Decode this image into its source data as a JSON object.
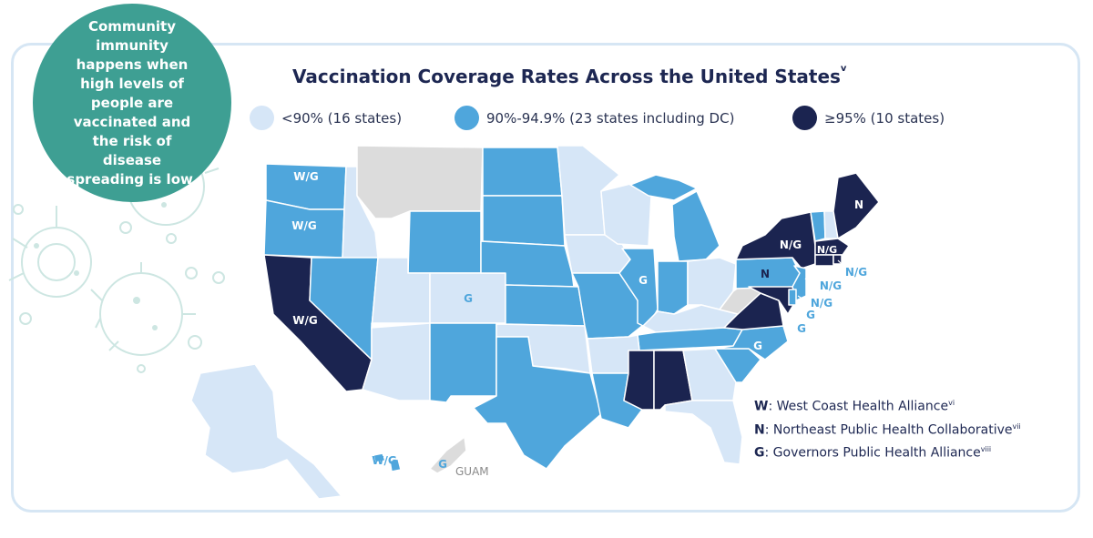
{
  "callout": {
    "text": "Community immunity happens when high levels of people are vaccinated and the risk of disease spreading is low."
  },
  "title": {
    "text": "Vaccination Coverage Rates Across the United States",
    "superscript": "v"
  },
  "legend": [
    {
      "label": "<90% (16 states)",
      "color": "#d6e6f7"
    },
    {
      "label": "90%-94.9% (23 states including DC)",
      "color": "#4fa6dc"
    },
    {
      "label": "≥95% (10 states)",
      "color": "#1b2450"
    }
  ],
  "colors": {
    "low": "#d6e6f7",
    "mid": "#4fa6dc",
    "high": "#1b2450",
    "nodata": "#dcdcdc",
    "title": "#1d2752",
    "bubble": "#3e9f93",
    "frame": "#d6e6f4"
  },
  "map_labels": {
    "washington": "W/G",
    "oregon": "W/G",
    "california": "W/G",
    "hawaii": "W/G",
    "colorado": "G",
    "illinois": "G",
    "north_carolina": "G",
    "guam": "G",
    "guam_name": "GUAM",
    "maine": "N",
    "new_york": "N/G",
    "massachusetts": "N/G",
    "pennsylvania": "N",
    "rhode_island": "N/G",
    "new_jersey": "N/G",
    "delaware": "N/G",
    "maryland": "G",
    "virginia": "G"
  },
  "key": [
    {
      "code": "W",
      "text": ": West Coast Health Alliance",
      "sup": "vi"
    },
    {
      "code": "N",
      "text": ": Northeast Public Health Collaborative",
      "sup": "vii"
    },
    {
      "code": "G",
      "text": ": Governors Public Health Alliance",
      "sup": "viii"
    }
  ]
}
